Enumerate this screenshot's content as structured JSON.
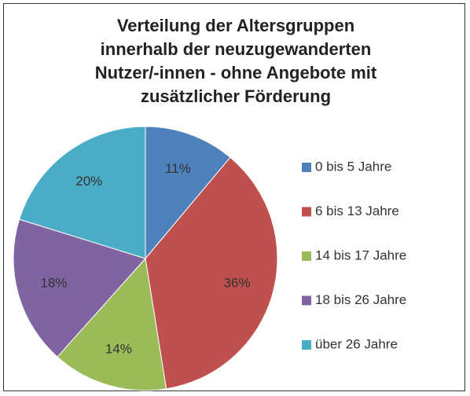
{
  "chart_data": {
    "type": "pie",
    "title": "Verteilung der Altersgruppen innerhalb der neuzugewanderten Nutzer/-innen - ohne Angebote mit zusätzlicher Förderung",
    "categories": [
      "0 bis 5 Jahre",
      "6 bis 13 Jahre",
      "14 bis 17 Jahre",
      "18 bis 26 Jahre",
      "über 26 Jahre"
    ],
    "values": [
      11,
      36,
      14,
      18,
      20
    ],
    "value_labels": [
      "11%",
      "36%",
      "14%",
      "18%",
      "20%"
    ],
    "colors": [
      "#4f81bd",
      "#c0504d",
      "#9bbb59",
      "#8064a2",
      "#4bacc6"
    ],
    "legend": "right"
  }
}
